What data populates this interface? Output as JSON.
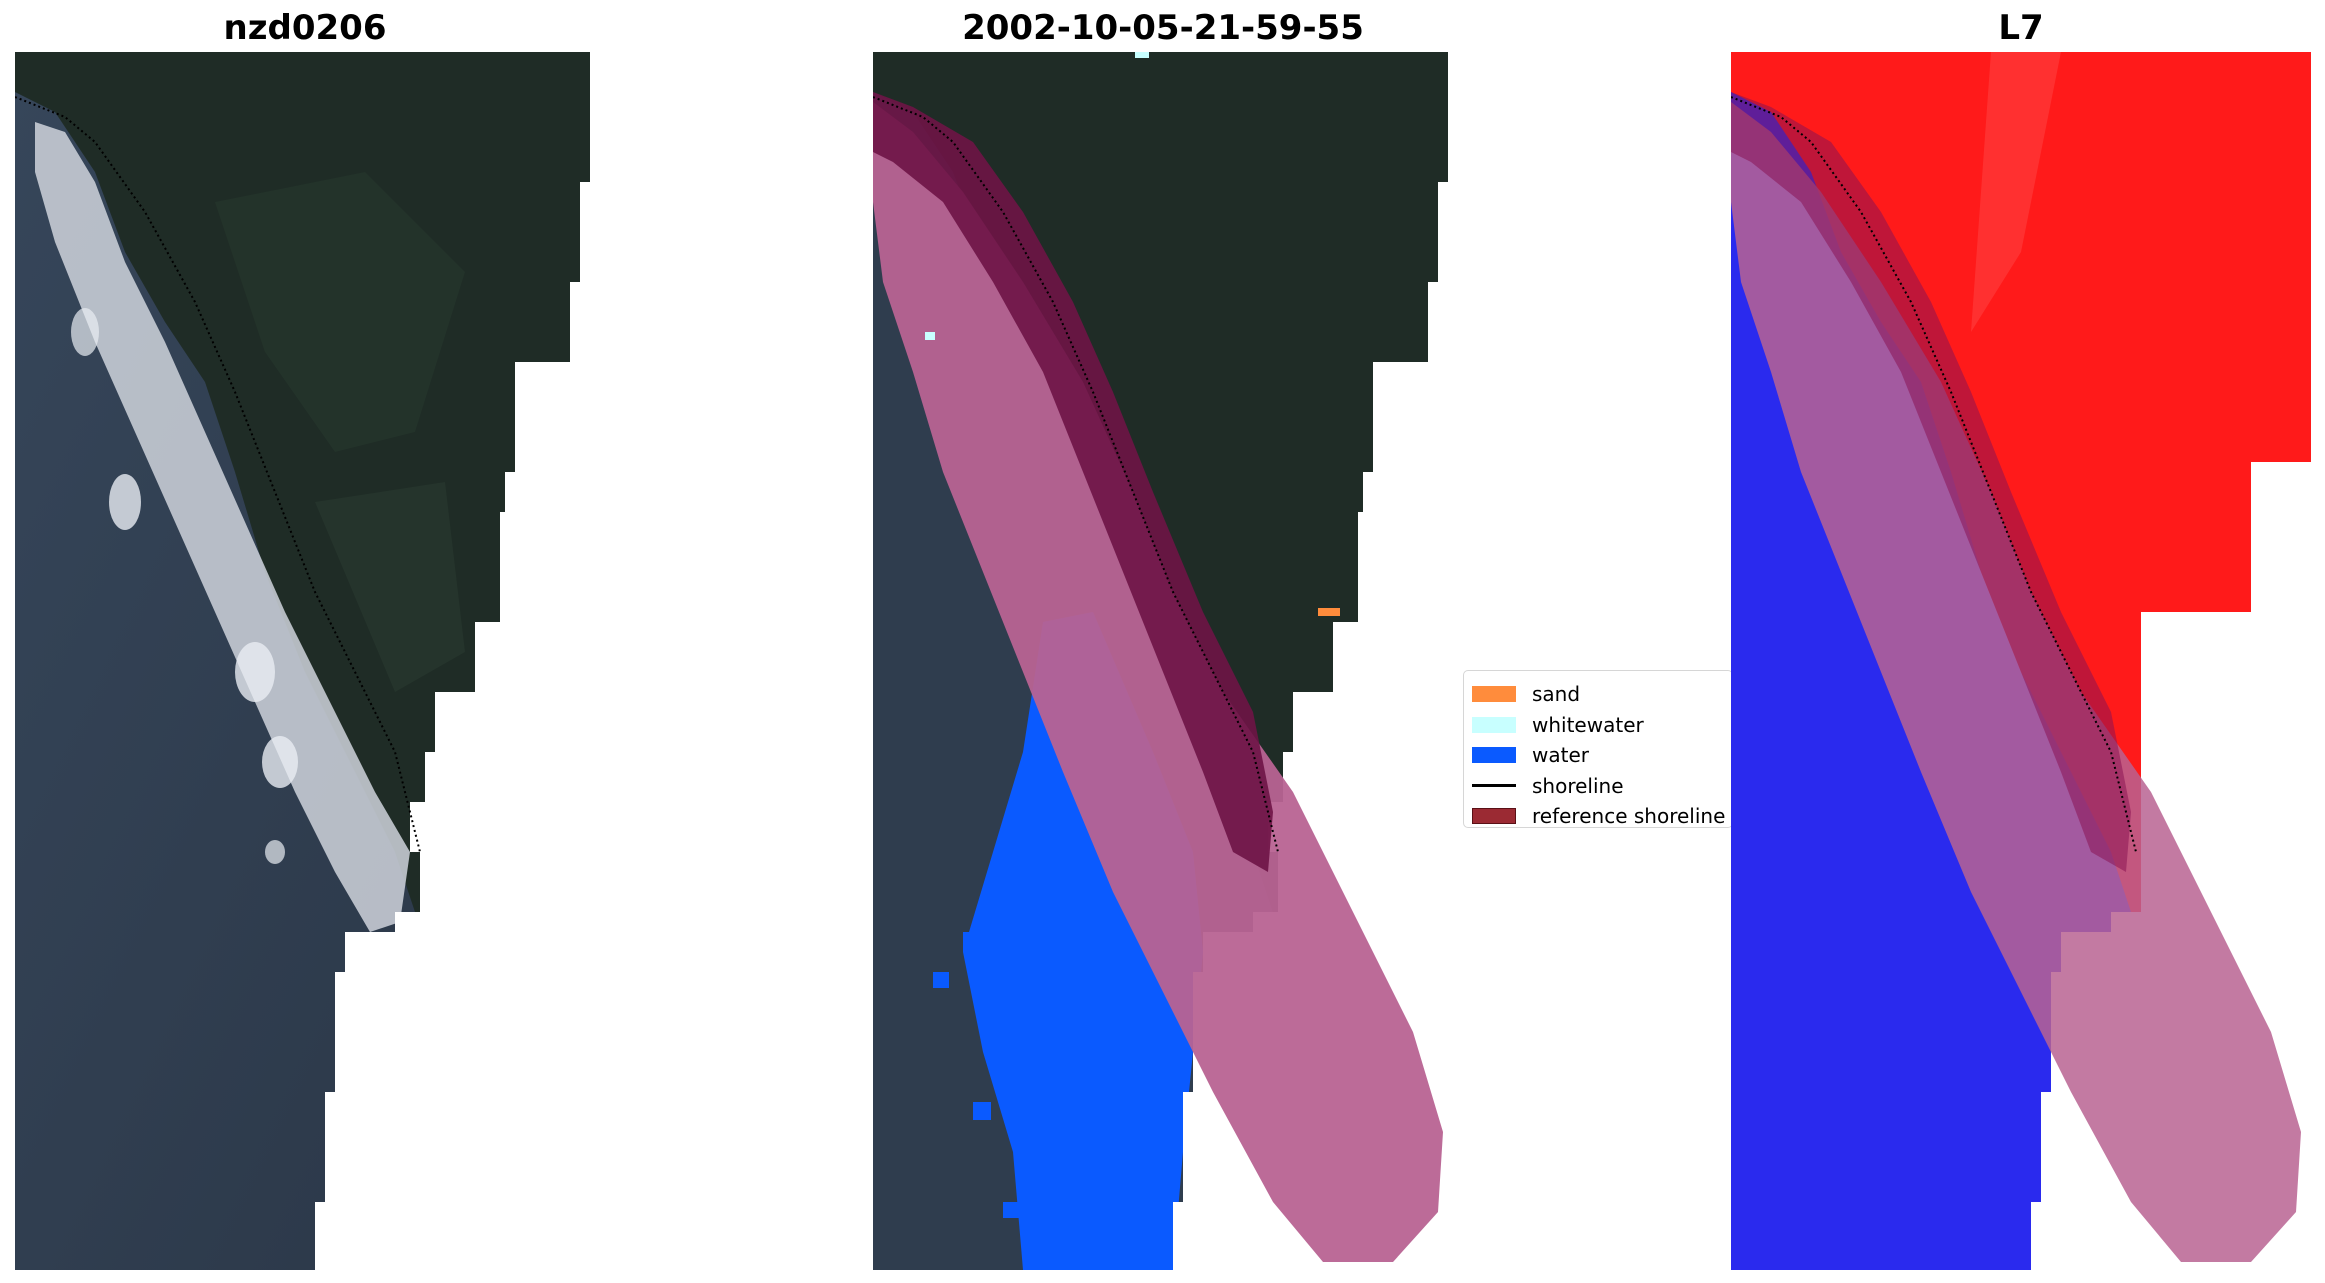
{
  "panels": [
    {
      "title": "nzd0206"
    },
    {
      "title": "2002-10-05-21-59-55"
    },
    {
      "title": "L7"
    }
  ],
  "legend": {
    "items": [
      {
        "label": "sand",
        "color": "#ff8c3c"
      },
      {
        "label": "whitewater",
        "color": "#c8ffff"
      },
      {
        "label": "water",
        "color": "#0a5aff"
      },
      {
        "label": "shoreline",
        "color": "#000000"
      },
      {
        "label": "reference shoreline",
        "color": "#9b2a33"
      }
    ]
  },
  "colors": {
    "ocean": "#2f3d4e",
    "land": "#1f2c26",
    "surf": "#dfe3ea",
    "red_index": "#ff1a1a",
    "blue_index": "#2a2aee",
    "buffer_pink": "#b86392",
    "buffer_dark": "#6e1446"
  }
}
